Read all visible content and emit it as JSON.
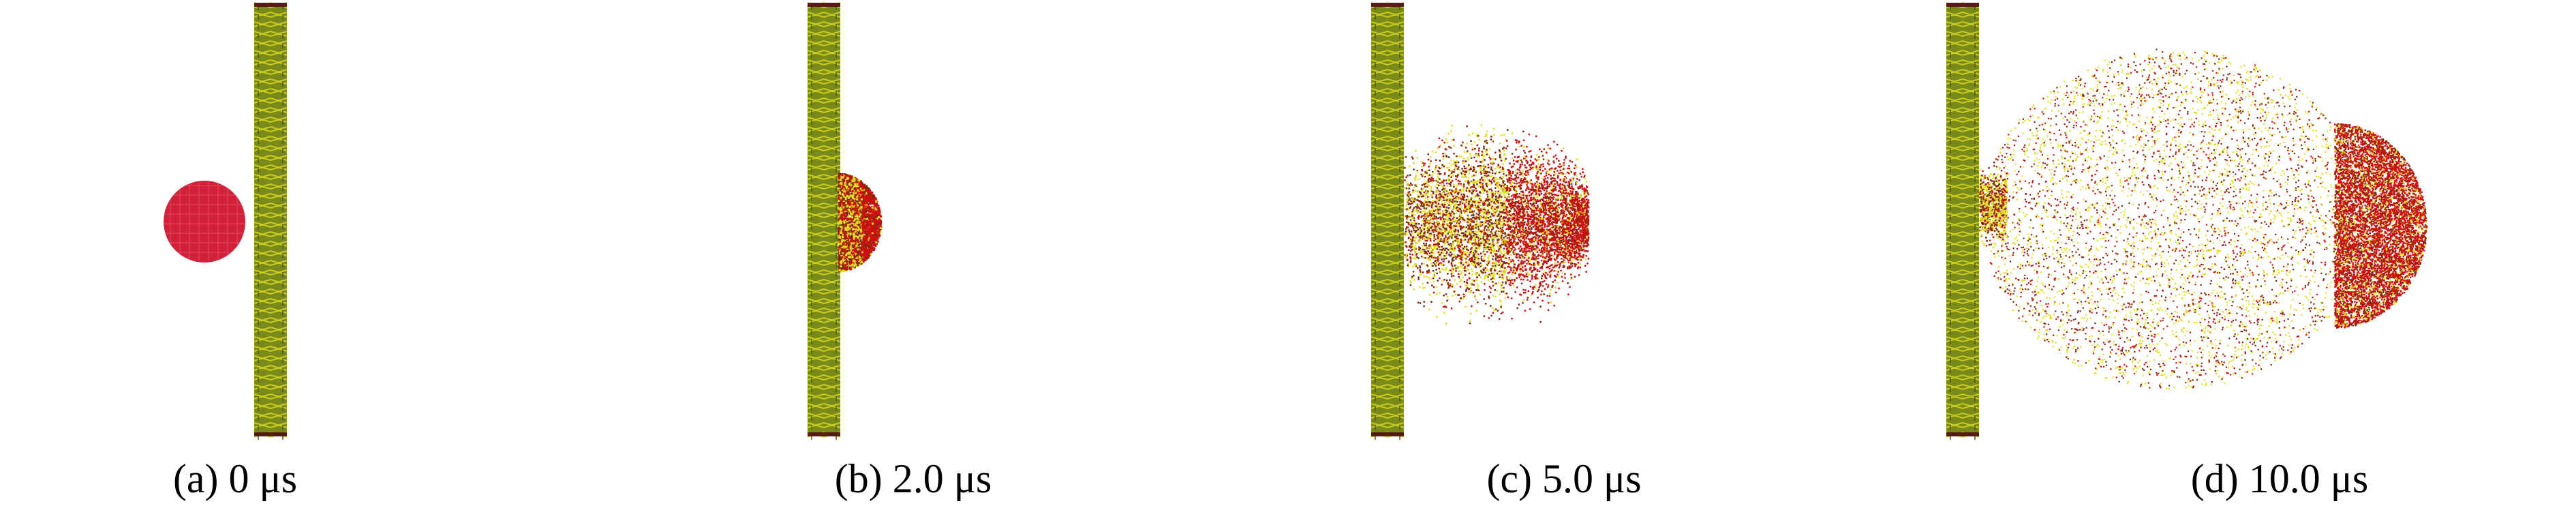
{
  "panels": [
    {
      "id": "a",
      "caption": "(a) 0 μs"
    },
    {
      "id": "b",
      "caption": "(b) 2.0 μs"
    },
    {
      "id": "c",
      "caption": "(c) 5.0 μs"
    },
    {
      "id": "d",
      "caption": "(d) 10.0 μs"
    }
  ],
  "colors": {
    "background": "#ffffff",
    "plate_green": "#7a8a1a",
    "plate_yellow": "#d8d820",
    "plate_dark": "#5a1a1a",
    "projectile": "#d0203a",
    "debris_red": "#cc1010",
    "debris_yellow": "#e0e020",
    "debris_dark": "#7a2a10"
  }
}
